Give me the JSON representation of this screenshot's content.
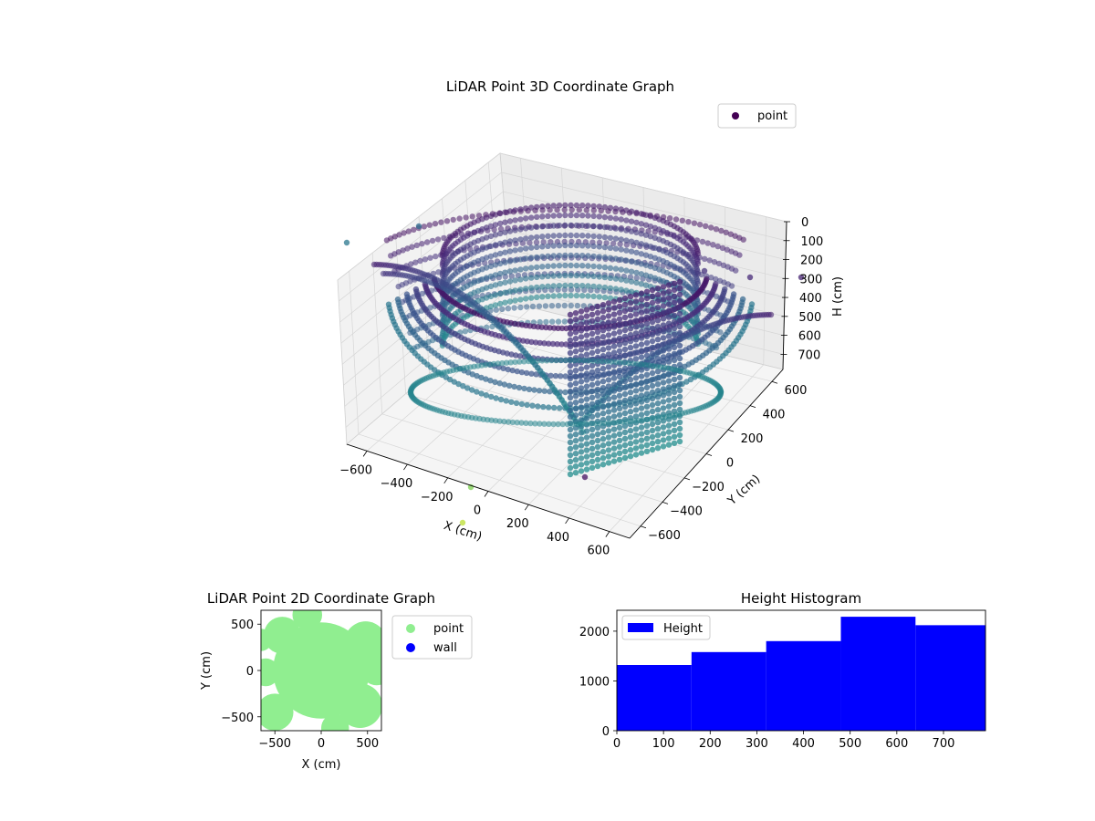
{
  "chart_data": [
    {
      "type": "scatter",
      "projection": "3d",
      "title": "LiDAR Point 3D Coordinate Graph",
      "xlabel": "X (cm)",
      "ylabel": "Y (cm)",
      "zlabel": "H (cm)",
      "x_ticks": [
        "−600",
        "−400",
        "−200",
        "0",
        "200",
        "400",
        "600"
      ],
      "y_ticks": [
        "−600",
        "−400",
        "−200",
        "0",
        "200",
        "400",
        "600"
      ],
      "z_ticks": [
        "0",
        "100",
        "200",
        "300",
        "400",
        "500",
        "600",
        "700"
      ],
      "xlim": [
        -700,
        700
      ],
      "ylim": [
        -700,
        700
      ],
      "zlim": [
        0,
        780
      ],
      "z_inverted": true,
      "colormap": "viridis",
      "legend": {
        "placement": "top-right",
        "entries": [
          {
            "label": "point",
            "color": "#440154"
          }
        ]
      },
      "grid": true
    },
    {
      "type": "scatter",
      "title": "LiDAR Point 2D Coordinate Graph",
      "xlabel": "X (cm)",
      "ylabel": "Y (cm)",
      "x_ticks": [
        "−500",
        "0",
        "500"
      ],
      "y_ticks": [
        "500",
        "0",
        "−500"
      ],
      "xlim": [
        -650,
        650
      ],
      "ylim": [
        -650,
        650
      ],
      "legend": {
        "placement": "outside-right",
        "entries": [
          {
            "label": "point",
            "color": "#90ee90"
          },
          {
            "label": "wall",
            "color": "#0000ff"
          }
        ]
      },
      "series": [
        {
          "name": "point",
          "color": "#90ee90"
        },
        {
          "name": "wall",
          "color": "#0000ff"
        }
      ]
    },
    {
      "type": "bar",
      "title": "Height Histogram",
      "x_ticks": [
        "0",
        "100",
        "200",
        "300",
        "400",
        "500",
        "600",
        "700"
      ],
      "y_ticks": [
        "0",
        "1000",
        "2000"
      ],
      "xlim": [
        0,
        790
      ],
      "ylim": [
        0,
        2420
      ],
      "bin_edges": [
        0,
        160,
        320,
        480,
        640,
        790
      ],
      "values": [
        1320,
        1580,
        1800,
        2290,
        2120
      ],
      "color": "#0000ff",
      "legend": {
        "placement": "top-left",
        "entries": [
          {
            "label": "Height",
            "color": "#0000ff"
          }
        ]
      },
      "series": [
        {
          "name": "Height",
          "values": [
            1320,
            1580,
            1800,
            2290,
            2120
          ]
        }
      ]
    }
  ]
}
